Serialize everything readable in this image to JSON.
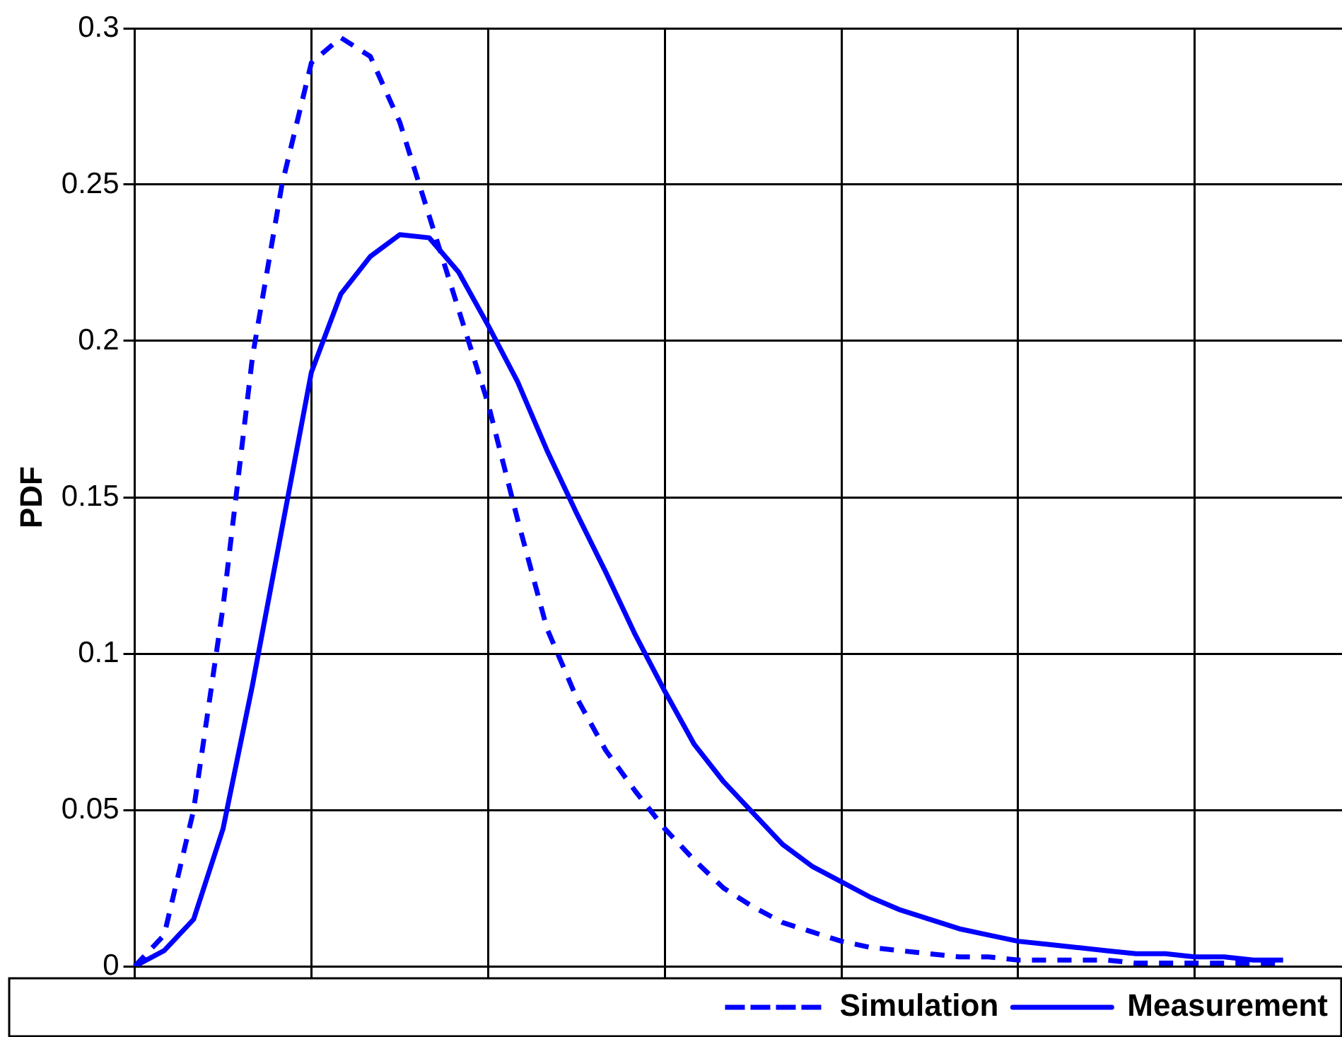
{
  "chart_data": {
    "type": "line",
    "ylabel": "PDF",
    "categories": [
      null,
      null,
      null,
      null,
      null,
      null,
      null,
      null,
      null,
      null,
      null,
      null,
      null,
      null,
      null,
      null,
      null,
      null,
      null,
      null,
      null,
      null,
      null,
      null,
      null,
      null,
      null,
      null,
      null,
      null,
      null,
      null,
      null,
      null,
      null,
      null,
      null,
      null,
      null,
      null,
      null,
      null
    ],
    "series": [
      {
        "name": "Simulation",
        "color": "#0000ff",
        "line_style": "dashed",
        "values": [
          0,
          0.01,
          0.05,
          0.115,
          0.195,
          0.25,
          0.289,
          0.297,
          0.291,
          0.27,
          0.24,
          0.21,
          0.18,
          0.143,
          0.108,
          0.086,
          0.069,
          0.056,
          0.044,
          0.034,
          0.025,
          0.019,
          0.014,
          0.011,
          0.008,
          0.006,
          0.005,
          0.004,
          0.003,
          0.003,
          0.002,
          0.002,
          0.002,
          0.002,
          0.001,
          0.001,
          0.001,
          0.001,
          0.001,
          0.001,
          null,
          null
        ]
      },
      {
        "name": "Measurement",
        "color": "#0000ff",
        "line_style": "solid",
        "values": [
          0,
          0.005,
          0.015,
          0.044,
          0.09,
          0.14,
          0.19,
          0.215,
          0.227,
          0.234,
          0.233,
          0.222,
          0.205,
          0.187,
          0.165,
          0.145,
          0.126,
          0.106,
          0.088,
          0.071,
          0.059,
          0.049,
          0.039,
          0.032,
          0.027,
          0.022,
          0.018,
          0.015,
          0.012,
          0.01,
          0.008,
          0.007,
          0.006,
          0.005,
          0.004,
          0.004,
          0.003,
          0.003,
          0.002,
          0.002,
          null,
          null
        ]
      }
    ],
    "ylim": [
      0,
      0.3
    ],
    "yticks": [
      0,
      0.05,
      0.1,
      0.15,
      0.2,
      0.25,
      0.3
    ],
    "grid": true,
    "legend": "bottom right",
    "tick_labels": "y",
    "marker": "none"
  }
}
